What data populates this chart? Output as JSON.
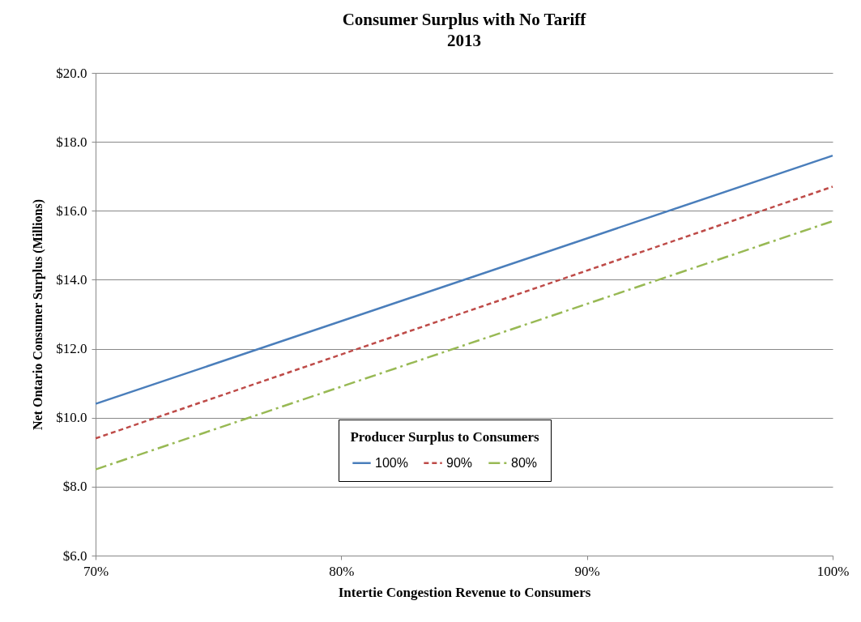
{
  "chart_data": {
    "type": "line",
    "title": "Consumer Surplus with No Tariff\n2013",
    "xlabel": "Intertie Congestion Revenue to Consumers",
    "ylabel": "Net Ontario Consumer Surplus (Millions)",
    "legend_title": "Producer Surplus to Consumers",
    "x": [
      70,
      100
    ],
    "series": [
      {
        "name": "100%",
        "color": "#4a7ebb",
        "line_style": "solid",
        "values": [
          10.4,
          17.6
        ]
      },
      {
        "name": "90%",
        "color": "#be4b48",
        "line_style": "dashed",
        "values": [
          9.4,
          16.7
        ]
      },
      {
        "name": "80%",
        "color": "#98b954",
        "line_style": "dashdot",
        "values": [
          8.5,
          15.7
        ]
      }
    ],
    "xlim": [
      70,
      100
    ],
    "xticks": [
      {
        "value": 70,
        "label": "70%"
      },
      {
        "value": 80,
        "label": "80%"
      },
      {
        "value": 90,
        "label": "90%"
      },
      {
        "value": 100,
        "label": "100%"
      }
    ],
    "ylim": [
      6,
      20
    ],
    "yticks": [
      {
        "value": 6,
        "label": "$6.0"
      },
      {
        "value": 8,
        "label": "$8.0"
      },
      {
        "value": 10,
        "label": "$10.0"
      },
      {
        "value": 12,
        "label": "$12.0"
      },
      {
        "value": 14,
        "label": "$14.0"
      },
      {
        "value": 16,
        "label": "$16.0"
      },
      {
        "value": 18,
        "label": "$18.0"
      },
      {
        "value": 20,
        "label": "$20.0"
      }
    ],
    "grid": "y",
    "legend": "bottom",
    "marker": "none"
  }
}
